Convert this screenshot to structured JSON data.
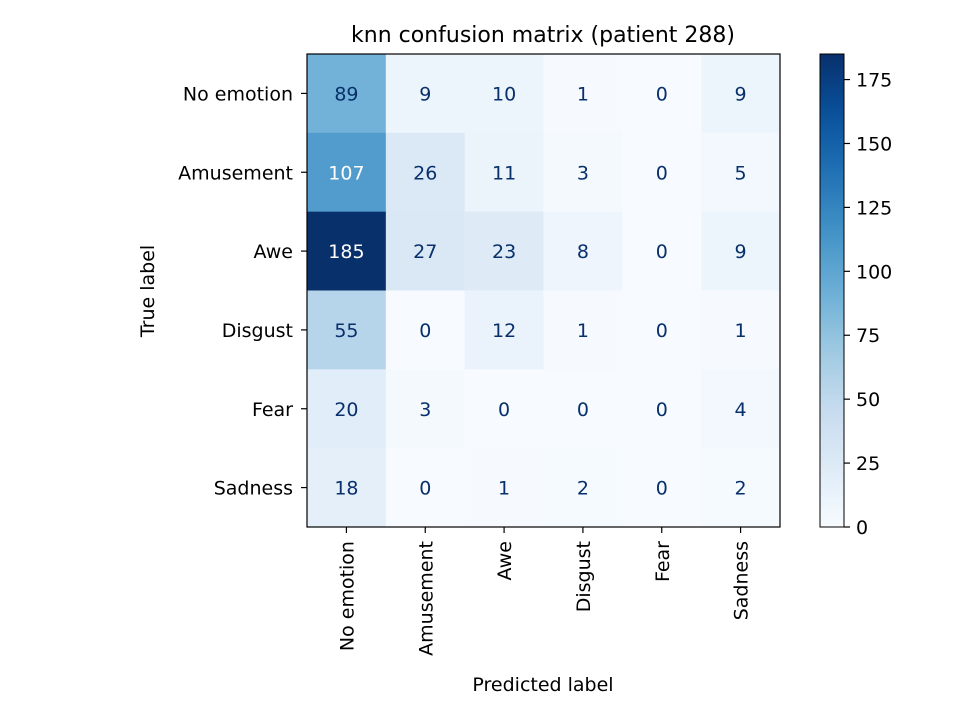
{
  "chart_data": {
    "type": "heatmap",
    "title": "knn confusion matrix (patient 288)",
    "xlabel": "Predicted label",
    "ylabel": "True label",
    "x_categories": [
      "No emotion",
      "Amusement",
      "Awe",
      "Disgust",
      "Fear",
      "Sadness"
    ],
    "y_categories": [
      "No emotion",
      "Amusement",
      "Awe",
      "Disgust",
      "Fear",
      "Sadness"
    ],
    "values": [
      [
        89,
        9,
        10,
        1,
        0,
        9
      ],
      [
        107,
        26,
        11,
        3,
        0,
        5
      ],
      [
        185,
        27,
        23,
        8,
        0,
        9
      ],
      [
        55,
        0,
        12,
        1,
        0,
        1
      ],
      [
        20,
        3,
        0,
        0,
        0,
        4
      ],
      [
        18,
        0,
        1,
        2,
        0,
        2
      ]
    ],
    "vmin": 0,
    "vmax": 185,
    "colormap": "Blues",
    "colorbar_ticks": [
      0,
      25,
      50,
      75,
      100,
      125,
      150,
      175
    ]
  },
  "colors": {
    "light_text": "#ffffff",
    "dark_text": "#08306b",
    "axis": "#000000"
  }
}
